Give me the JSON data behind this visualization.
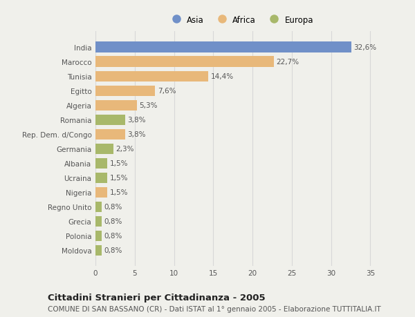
{
  "categories": [
    "India",
    "Marocco",
    "Tunisia",
    "Egitto",
    "Algeria",
    "Romania",
    "Rep. Dem. d/Congo",
    "Germania",
    "Albania",
    "Ucraina",
    "Nigeria",
    "Regno Unito",
    "Grecia",
    "Polonia",
    "Moldova"
  ],
  "values": [
    32.6,
    22.7,
    14.4,
    7.6,
    5.3,
    3.8,
    3.8,
    2.3,
    1.5,
    1.5,
    1.5,
    0.8,
    0.8,
    0.8,
    0.8
  ],
  "labels": [
    "32,6%",
    "22,7%",
    "14,4%",
    "7,6%",
    "5,3%",
    "3,8%",
    "3,8%",
    "2,3%",
    "1,5%",
    "1,5%",
    "1,5%",
    "0,8%",
    "0,8%",
    "0,8%",
    "0,8%"
  ],
  "continents": [
    "Asia",
    "Africa",
    "Africa",
    "Africa",
    "Africa",
    "Europa",
    "Africa",
    "Europa",
    "Europa",
    "Europa",
    "Africa",
    "Europa",
    "Europa",
    "Europa",
    "Europa"
  ],
  "colors": {
    "Asia": "#7090c8",
    "Africa": "#e8b87a",
    "Europa": "#a8b86a"
  },
  "title_main": "Cittadini Stranieri per Cittadinanza - 2005",
  "title_sub": "COMUNE DI SAN BASSANO (CR) - Dati ISTAT al 1° gennaio 2005 - Elaborazione TUTTITALIA.IT",
  "xlim": [
    0,
    37
  ],
  "xticks": [
    0,
    5,
    10,
    15,
    20,
    25,
    30,
    35
  ],
  "background_color": "#f0f0eb",
  "plot_background": "#f0f0eb",
  "grid_color": "#d8d8d8",
  "bar_height": 0.72,
  "label_fontsize": 7.5,
  "tick_fontsize": 7.5,
  "title_fontsize": 9.5,
  "subtitle_fontsize": 7.5,
  "legend_fontsize": 8.5
}
